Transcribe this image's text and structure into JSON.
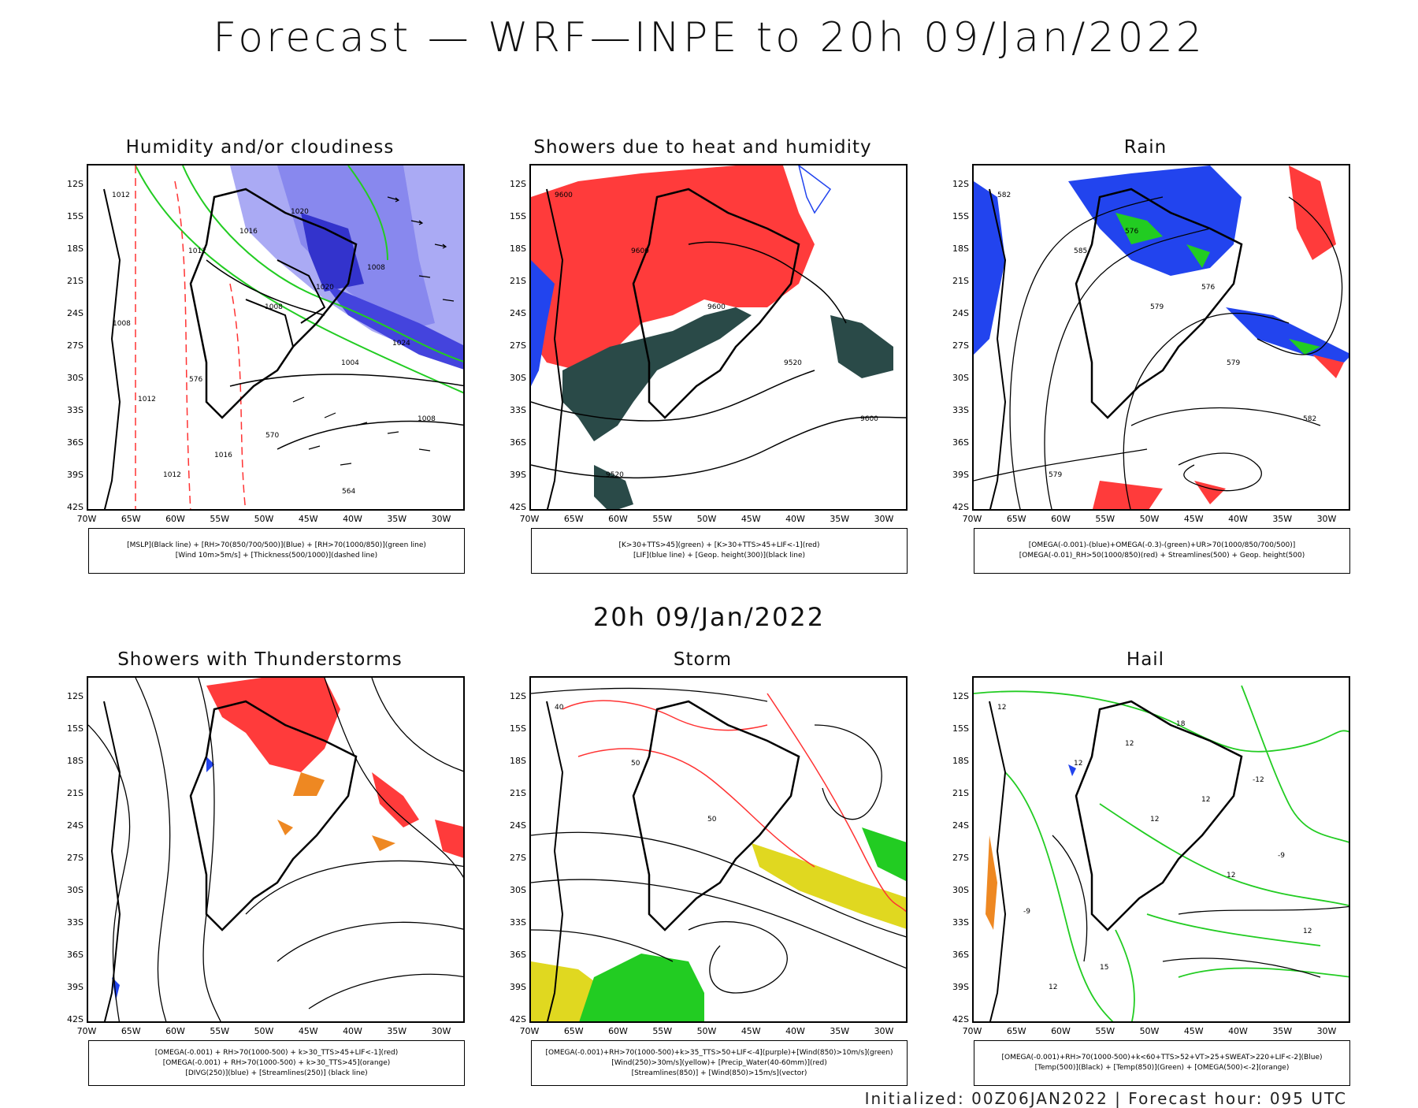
{
  "title": "Forecast — WRF—INPE to 20h 09/Jan/2022",
  "subtitle": "20h 09/Jan/2022",
  "footer": "Initialized: 00Z06JAN2022 | Forecast hour: 095 UTC",
  "lat_ticks": [
    "12S",
    "15S",
    "18S",
    "21S",
    "24S",
    "27S",
    "30S",
    "33S",
    "36S",
    "39S",
    "42S"
  ],
  "lon_ticks": [
    "70W",
    "65W",
    "60W",
    "55W",
    "50W",
    "45W",
    "40W",
    "35W",
    "30W"
  ],
  "colors": {
    "rh_blue": "#8888ee",
    "rh_dark": "#3333cc",
    "green": "#22cc22",
    "red": "#ff3333",
    "darkgreen": "#2a4a48",
    "blue": "#2244ee",
    "yellow": "#e0d820",
    "orange": "#ee8822"
  },
  "panels": [
    {
      "title": "Humidity and/or cloudiness",
      "legend": [
        "[MSLP](Black line) + [RH>70(850/700/500)](Blue) + [RH>70(1000/850)](green line)",
        "[Wind 10m>5m/s] + [Thickness(500/1000)](dashed line)"
      ],
      "labels": [
        "1012",
        "1012",
        "1008",
        "1004",
        "1008",
        "1012",
        "1016",
        "1020",
        "1024",
        "1012",
        "1016",
        "1020",
        "1008",
        "1008",
        "576",
        "570",
        "564"
      ]
    },
    {
      "title": "Showers due to heat and humidity",
      "legend": [
        "[K>30+TTS>45](green) + [K>30+TTS>45+LIF<-1](red)",
        "[LIF](blue line) + [Geop. height(300)](black line)"
      ],
      "labels": [
        "9600",
        "9600",
        "9600",
        "9520",
        "9600",
        "9520"
      ]
    },
    {
      "title": "Rain",
      "legend": [
        "[OMEGA(-0.001)-(blue)+OMEGA(-0.3)-(green)+UR>70(1000/850/700/500)]",
        "[OMEGA(-0.01)_RH>50(1000/850)(red) + Streamlines(500) + Geop. height(500)"
      ],
      "labels": [
        "582",
        "585",
        "579",
        "579",
        "582",
        "579",
        "576",
        "576"
      ]
    },
    {
      "title": "Showers with Thunderstorms",
      "legend": [
        "[OMEGA(-0.001) + RH>70(1000-500) + k>30_TTS>45+LIF<-1](red)",
        "[OMEGA(-0.001) + RH>70(1000-500) + k>30_TTS>45](orange)",
        "[DIVG(250)](blue) + [Streamlines(250)] (black line)"
      ],
      "labels": []
    },
    {
      "title": "Storm",
      "legend": [
        "[OMEGA(-0.001)+RH>70(1000-500)+k>35_TTS>50+LIF<-4](purple)+[Wind(850)>10m/s](green)",
        "[Wind(250)>30m/s](yellow)+ [Precip_Water(40-60mm)](red)",
        "[Streamlines(850)] + [Wind(850)>15m/s](vector)"
      ],
      "labels": [
        "40",
        "50",
        "50"
      ]
    },
    {
      "title": "Hail",
      "legend": [
        "[OMEGA(-0.001)+RH>70(1000-500)+k<60+TTS>52+VT>25+SWEAT>220+LIF<-2](Blue)",
        "[Temp(500)](Black) + [Temp(850)](Green) + [OMEGA(500)<-2](orange)"
      ],
      "labels": [
        "12",
        "12",
        "12",
        "12",
        "12",
        "12",
        "12",
        "12",
        "-9",
        "-9",
        "15",
        "18",
        "-12"
      ]
    }
  ]
}
